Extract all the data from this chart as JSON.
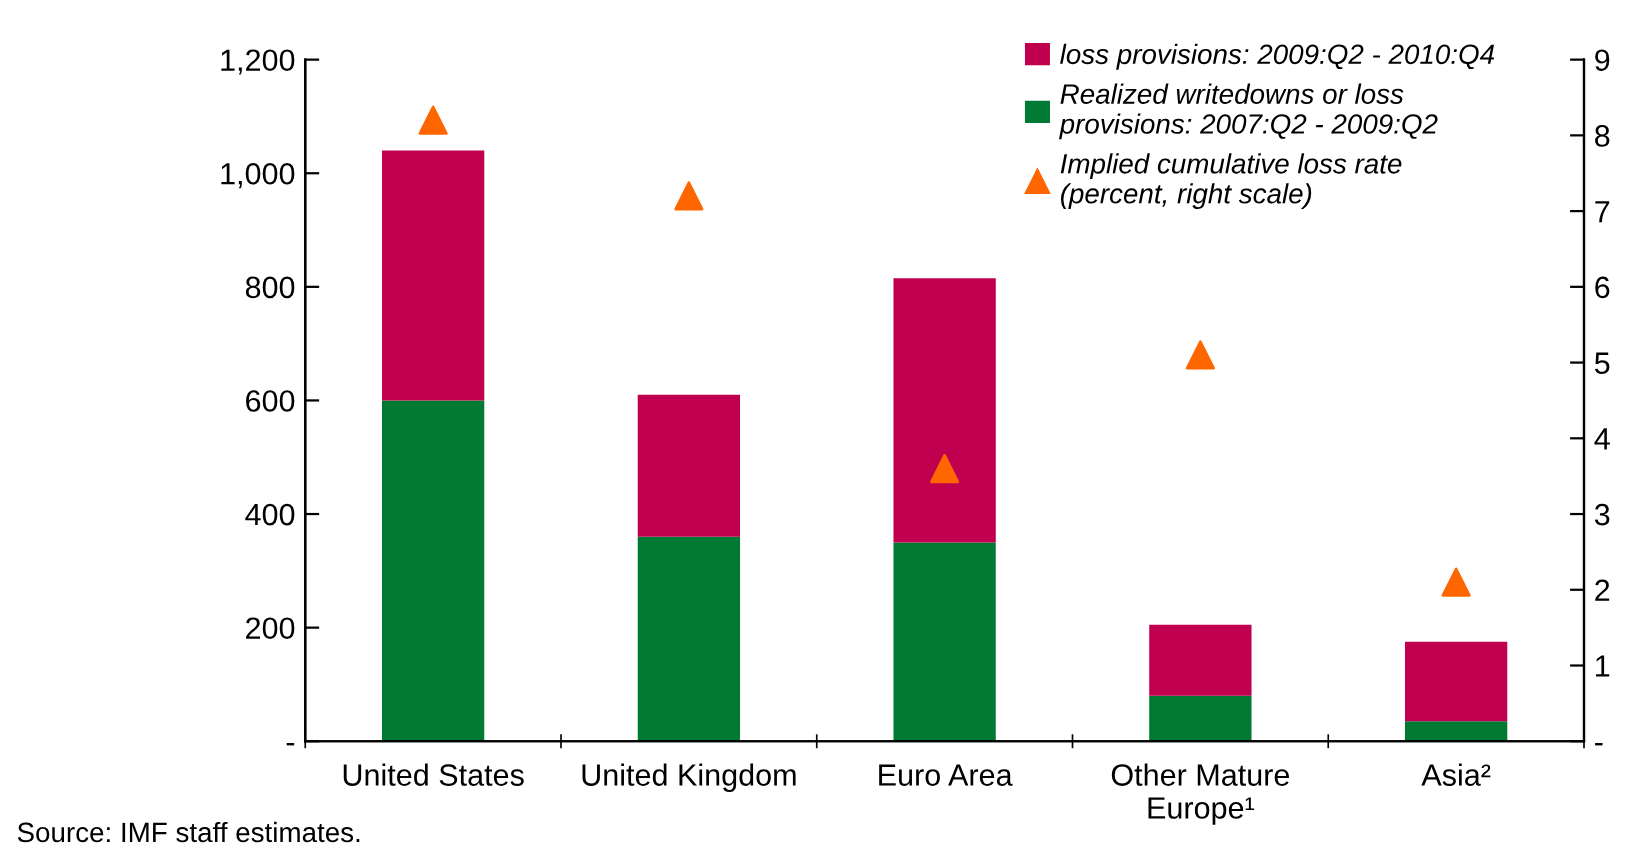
{
  "chart_data": {
    "type": "bar",
    "stacked": true,
    "categories": [
      "United States",
      "United Kingdom",
      "Euro Area",
      "Other Mature\nEurope¹",
      "Asia²"
    ],
    "series": [
      {
        "name": "Realized writedowns or loss provisions: 2007:Q2 - 2009:Q2",
        "color": "#007a33",
        "values": [
          600,
          360,
          350,
          80,
          35
        ]
      },
      {
        "name": "loss provisions: 2009:Q2 - 2010:Q4",
        "color": "#c0004e",
        "values": [
          440,
          250,
          465,
          125,
          140
        ]
      },
      {
        "name": "Implied cumulative loss rate (percent, right scale)",
        "type": "scatter",
        "axis": "y2",
        "color": "#ff6600",
        "marker": "triangle",
        "values": [
          8.2,
          7.2,
          3.6,
          5.1,
          2.1
        ]
      }
    ],
    "ylim": [
      0,
      1200
    ],
    "yticks": [
      {
        "value": 0,
        "label": "-"
      },
      200,
      400,
      600,
      800,
      {
        "value": 1000,
        "label": "1,000"
      },
      {
        "value": 1200,
        "label": "1,200"
      }
    ],
    "y2lim": [
      0,
      9
    ],
    "y2ticks": [
      {
        "value": 0,
        "label": "-"
      },
      1,
      2,
      3,
      4,
      5,
      6,
      7,
      8,
      9
    ],
    "legend": "top right",
    "grid": false,
    "annotations": [
      "Source: IMF staff estimates."
    ]
  }
}
